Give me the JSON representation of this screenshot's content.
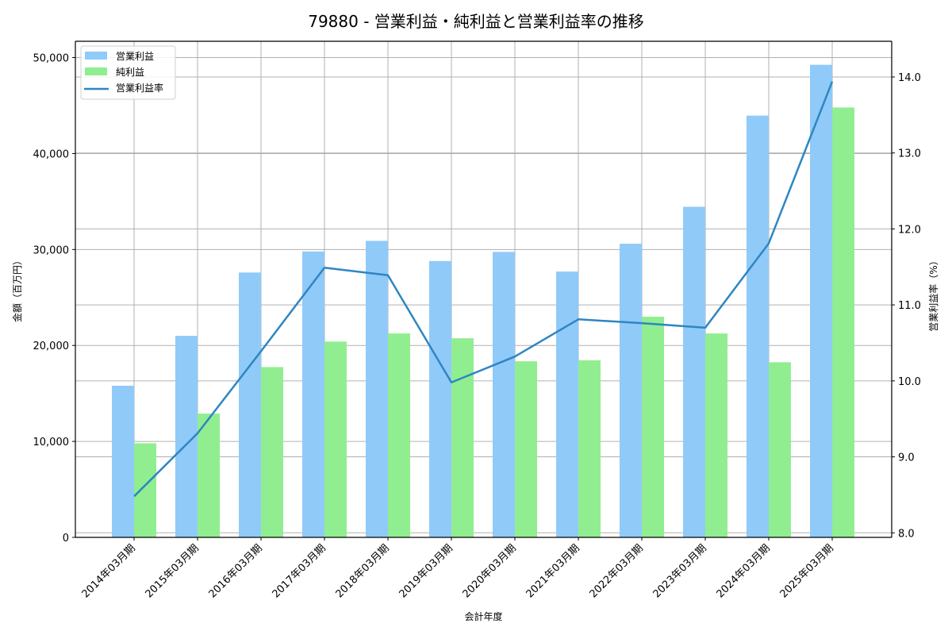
{
  "chart_data": {
    "type": "bar",
    "title": "79880 - 営業利益・純利益と営業利益率の推移",
    "xlabel": "会計年度",
    "ylabel": "金額（百万円）",
    "y2label": "営業利益率（%）",
    "categories": [
      "2014年03月期",
      "2015年03月期",
      "2016年03月期",
      "2017年03月期",
      "2018年03月期",
      "2019年03月期",
      "2020年03月期",
      "2021年03月期",
      "2022年03月期",
      "2023年03月期",
      "2024年03月期",
      "2025年03月期"
    ],
    "series": [
      {
        "name": "営業利益",
        "type": "bar",
        "axis": "left",
        "color": "#90CAF9",
        "values": [
          15800,
          21000,
          27600,
          29800,
          30900,
          28800,
          29750,
          27700,
          30600,
          34450,
          43950,
          49250
        ]
      },
      {
        "name": "純利益",
        "type": "bar",
        "axis": "left",
        "color": "#90EE90",
        "values": [
          9800,
          12900,
          17750,
          20400,
          21250,
          20750,
          18350,
          18450,
          23000,
          21250,
          18250,
          44800
        ]
      },
      {
        "name": "営業利益率",
        "type": "line",
        "axis": "right",
        "color": "#2E86C1",
        "values": [
          8.48,
          9.31,
          10.39,
          11.49,
          11.39,
          9.98,
          10.32,
          10.81,
          10.76,
          10.7,
          11.81,
          13.94
        ]
      }
    ],
    "ylim": [
      0,
      51700
    ],
    "yticks": [
      0,
      10000,
      20000,
      30000,
      40000,
      50000
    ],
    "ytick_labels": [
      "0",
      "10,000",
      "20,000",
      "30,000",
      "40,000",
      "50,000"
    ],
    "y2lim": [
      7.94,
      14.47
    ],
    "y2ticks": [
      8.0,
      9.0,
      10.0,
      11.0,
      12.0,
      13.0,
      14.0
    ],
    "y2tick_labels": [
      "8.0",
      "9.0",
      "10.0",
      "11.0",
      "12.0",
      "13.0",
      "14.0"
    ],
    "grid": true,
    "legend_position": "upper left"
  }
}
